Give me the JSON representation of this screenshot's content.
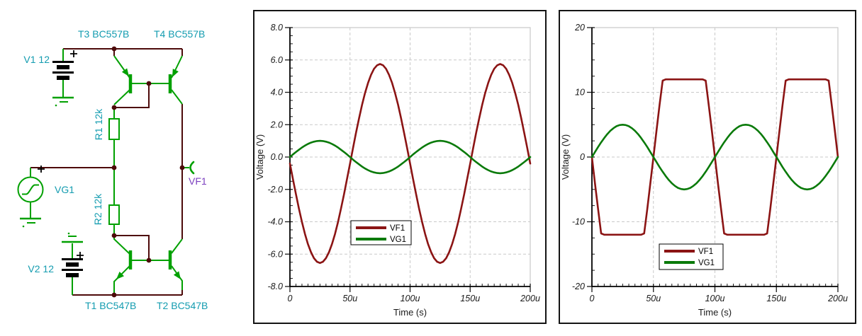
{
  "schematic": {
    "colors": {
      "wire": "#4d0a0a",
      "component": "#00a000",
      "label": "#149cb0",
      "probe_label": "#7b3fbf"
    },
    "components": [
      {
        "ref": "V1",
        "label": "V1 12",
        "type": "battery"
      },
      {
        "ref": "V2",
        "label": "V2 12",
        "type": "battery"
      },
      {
        "ref": "VG1",
        "label": "VG1",
        "type": "signal-source"
      },
      {
        "ref": "R1",
        "label": "R1 12k",
        "type": "resistor"
      },
      {
        "ref": "R2",
        "label": "R2 12k",
        "type": "resistor"
      },
      {
        "ref": "T1",
        "label": "T1 BC547B",
        "type": "npn-transistor"
      },
      {
        "ref": "T2",
        "label": "T2 BC547B",
        "type": "npn-transistor"
      },
      {
        "ref": "T3",
        "label": "T3 BC557B",
        "type": "pnp-transistor"
      },
      {
        "ref": "T4",
        "label": "T4 BC557B",
        "type": "pnp-transistor"
      },
      {
        "ref": "VF1",
        "label": "VF1",
        "type": "voltage-probe"
      }
    ]
  },
  "chart_data": [
    {
      "type": "line",
      "title": "",
      "xlabel": "Time (s)",
      "ylabel": "Voltage (V)",
      "xlim_us": [
        0,
        200
      ],
      "ylim": [
        -8,
        8
      ],
      "grid": "dashed",
      "xticks": {
        "values_us": [
          0,
          50,
          100,
          150,
          200
        ],
        "labels": [
          "0",
          "50u",
          "100u",
          "150u",
          "200u"
        ]
      },
      "xtick_minor_us": 5,
      "yticks": {
        "values": [
          8,
          6,
          4,
          2,
          0,
          -2,
          -4,
          -6,
          -8
        ],
        "labels": [
          "8.0",
          "6.0",
          "4.0",
          "2.0",
          "0.0",
          "-2.0",
          "-4.0",
          "-6.0",
          "-8.0"
        ]
      },
      "ytick_minor": 0.5,
      "legend": {
        "position": "inside-lower-middle",
        "entries": [
          "VF1",
          "VG1"
        ]
      },
      "x_us": [
        0,
        2.5,
        5,
        7.5,
        10,
        12.5,
        15,
        17.5,
        20,
        22.5,
        25,
        27.5,
        30,
        32.5,
        35,
        37.5,
        40,
        42.5,
        45,
        47.5,
        50,
        52.5,
        55,
        57.5,
        60,
        62.5,
        65,
        67.5,
        70,
        72.5,
        75,
        77.5,
        80,
        82.5,
        85,
        87.5,
        90,
        92.5,
        95,
        97.5,
        100,
        102.5,
        105,
        107.5,
        110,
        112.5,
        115,
        117.5,
        120,
        122.5,
        125,
        127.5,
        130,
        132.5,
        135,
        137.5,
        140,
        142.5,
        145,
        147.5,
        150,
        152.5,
        155,
        157.5,
        160,
        162.5,
        165,
        167.5,
        170,
        172.5,
        175,
        177.5,
        180,
        182.5,
        185,
        187.5,
        190,
        192.5,
        195,
        197.5,
        200
      ],
      "series": [
        {
          "name": "VF1",
          "color": "#8b1414",
          "values": [
            -0.4,
            -1.36,
            -2.3,
            -3.19,
            -4.02,
            -4.75,
            -5.38,
            -5.88,
            -6.25,
            -6.47,
            -6.55,
            -6.47,
            -6.25,
            -5.88,
            -5.38,
            -4.75,
            -4.02,
            -3.19,
            -2.3,
            -1.36,
            -0.4,
            0.56,
            1.5,
            2.39,
            3.22,
            3.95,
            4.58,
            5.08,
            5.45,
            5.67,
            5.75,
            5.67,
            5.45,
            5.08,
            4.58,
            3.95,
            3.22,
            2.39,
            1.5,
            0.56,
            -0.4,
            -1.36,
            -2.3,
            -3.19,
            -4.02,
            -4.75,
            -5.38,
            -5.88,
            -6.25,
            -6.47,
            -6.55,
            -6.47,
            -6.25,
            -5.88,
            -5.38,
            -4.75,
            -4.02,
            -3.19,
            -2.3,
            -1.36,
            -0.4,
            0.56,
            1.5,
            2.39,
            3.22,
            3.95,
            4.58,
            5.08,
            5.45,
            5.67,
            5.75,
            5.67,
            5.45,
            5.08,
            4.58,
            3.95,
            3.22,
            2.39,
            1.5,
            0.56,
            -0.4
          ]
        },
        {
          "name": "VG1",
          "color": "#0a7a0a",
          "values": [
            0,
            0.16,
            0.31,
            0.45,
            0.59,
            0.71,
            0.81,
            0.89,
            0.95,
            0.99,
            1,
            0.99,
            0.95,
            0.89,
            0.81,
            0.71,
            0.59,
            0.45,
            0.31,
            0.16,
            0,
            -0.16,
            -0.31,
            -0.45,
            -0.59,
            -0.71,
            -0.81,
            -0.89,
            -0.95,
            -0.99,
            -1,
            -0.99,
            -0.95,
            -0.89,
            -0.81,
            -0.71,
            -0.59,
            -0.45,
            -0.31,
            -0.16,
            0,
            0.16,
            0.31,
            0.45,
            0.59,
            0.71,
            0.81,
            0.89,
            0.95,
            0.99,
            1,
            0.99,
            0.95,
            0.89,
            0.81,
            0.71,
            0.59,
            0.45,
            0.31,
            0.16,
            0,
            -0.16,
            -0.31,
            -0.45,
            -0.59,
            -0.71,
            -0.81,
            -0.89,
            -0.95,
            -0.99,
            -1,
            -0.99,
            -0.95,
            -0.89,
            -0.81,
            -0.71,
            -0.59,
            -0.45,
            -0.31,
            -0.16,
            0
          ]
        }
      ]
    },
    {
      "type": "line",
      "title": "",
      "xlabel": "Time (s)",
      "ylabel": "Voltage (V)",
      "xlim_us": [
        0,
        200
      ],
      "ylim": [
        -20,
        20
      ],
      "grid": "dashed",
      "xticks": {
        "values_us": [
          0,
          50,
          100,
          150,
          200
        ],
        "labels": [
          "0",
          "50u",
          "100u",
          "150u",
          "200u"
        ]
      },
      "xtick_minor_us": 5,
      "yticks": {
        "values": [
          20,
          10,
          0,
          -10,
          -20
        ],
        "labels": [
          "20",
          "10",
          "0",
          "-10",
          "-20"
        ]
      },
      "ytick_minor": 2.5,
      "legend": {
        "position": "inside-lower-middle",
        "entries": [
          "VF1",
          "VG1"
        ]
      },
      "x_us": [
        0,
        2.5,
        5,
        7.5,
        10,
        12.5,
        15,
        17.5,
        20,
        22.5,
        25,
        27.5,
        30,
        32.5,
        35,
        37.5,
        40,
        42.5,
        45,
        47.5,
        50,
        52.5,
        55,
        57.5,
        60,
        62.5,
        65,
        67.5,
        70,
        72.5,
        75,
        77.5,
        80,
        82.5,
        85,
        87.5,
        90,
        92.5,
        95,
        97.5,
        100,
        102.5,
        105,
        107.5,
        110,
        112.5,
        115,
        117.5,
        120,
        122.5,
        125,
        127.5,
        130,
        132.5,
        135,
        137.5,
        140,
        142.5,
        145,
        147.5,
        150,
        152.5,
        155,
        157.5,
        160,
        162.5,
        165,
        167.5,
        170,
        172.5,
        175,
        177.5,
        180,
        182.5,
        185,
        187.5,
        190,
        192.5,
        195,
        197.5,
        200
      ],
      "series": [
        {
          "name": "VF1",
          "color": "#8b1414",
          "values": [
            0,
            -4.07,
            -8.03,
            -11.8,
            -12,
            -12,
            -12,
            -12,
            -12,
            -12,
            -12,
            -12,
            -12,
            -12,
            -12,
            -12,
            -12,
            -11.8,
            -8.03,
            -4.07,
            0,
            4.07,
            8.03,
            11.8,
            12,
            12,
            12,
            12,
            12,
            12,
            12,
            12,
            12,
            12,
            12,
            12,
            12,
            11.8,
            8.03,
            4.07,
            0,
            -4.07,
            -8.03,
            -11.8,
            -12,
            -12,
            -12,
            -12,
            -12,
            -12,
            -12,
            -12,
            -12,
            -12,
            -12,
            -12,
            -12,
            -11.8,
            -8.03,
            -4.07,
            0,
            4.07,
            8.03,
            11.8,
            12,
            12,
            12,
            12,
            12,
            12,
            12,
            12,
            12,
            12,
            12,
            12,
            12,
            11.8,
            8.03,
            4.07,
            0
          ]
        },
        {
          "name": "VG1",
          "color": "#0a7a0a",
          "values": [
            0,
            0.78,
            1.55,
            2.27,
            2.94,
            3.54,
            4.05,
            4.46,
            4.76,
            4.94,
            5,
            4.94,
            4.76,
            4.46,
            4.05,
            3.54,
            2.94,
            2.27,
            1.55,
            0.78,
            0,
            -0.78,
            -1.55,
            -2.27,
            -2.94,
            -3.54,
            -4.05,
            -4.46,
            -4.76,
            -4.94,
            -5,
            -4.94,
            -4.76,
            -4.46,
            -4.05,
            -3.54,
            -2.94,
            -2.27,
            -1.55,
            -0.78,
            0,
            0.78,
            1.55,
            2.27,
            2.94,
            3.54,
            4.05,
            4.46,
            4.76,
            4.94,
            5,
            4.94,
            4.76,
            4.46,
            4.05,
            3.54,
            2.94,
            2.27,
            1.55,
            0.78,
            0,
            -0.78,
            -1.55,
            -2.27,
            -2.94,
            -3.54,
            -4.05,
            -4.46,
            -4.76,
            -4.94,
            -5,
            -4.94,
            -4.76,
            -4.46,
            -4.05,
            -3.54,
            -2.94,
            -2.27,
            -1.55,
            -0.78,
            0
          ]
        }
      ]
    }
  ]
}
